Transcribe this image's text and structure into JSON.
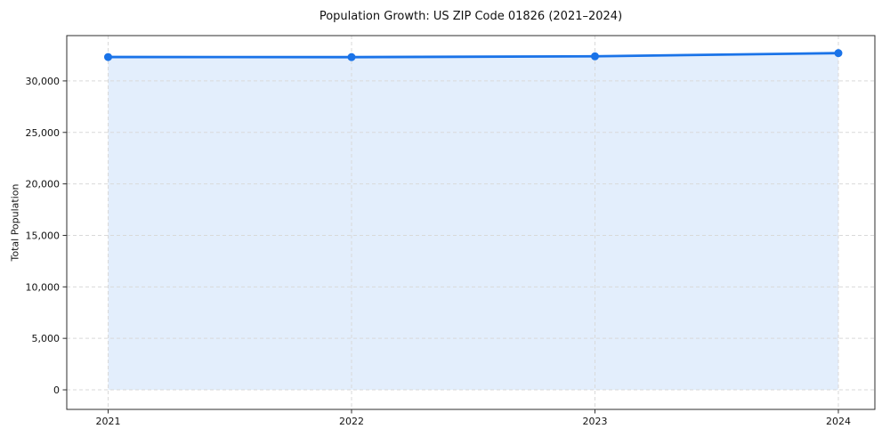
{
  "title": "Population Growth: US ZIP Code 01826 (2021–2024)",
  "chart_data": {
    "type": "line",
    "title": "Population Growth: US ZIP Code 01826 (2021–2024)",
    "xlabel": "",
    "ylabel": "Total Population",
    "x": [
      2021,
      2022,
      2023,
      2024
    ],
    "x_tick_labels": [
      "2021",
      "2022",
      "2023",
      "2024"
    ],
    "series": [
      {
        "name": "Total Population",
        "values": [
          32320,
          32310,
          32390,
          32700
        ]
      }
    ],
    "y_ticks": [
      0,
      5000,
      10000,
      15000,
      20000,
      25000,
      30000
    ],
    "y_tick_labels": [
      "0",
      "5,000",
      "10,000",
      "15,000",
      "20,000",
      "25,000",
      "30,000"
    ],
    "ylim": [
      -1900,
      34400
    ],
    "xlim": [
      2020.83,
      2024.15
    ],
    "grid": true,
    "grid_style": "dashed",
    "legend_position": "none",
    "line_color": "#1a73e8",
    "marker": "circle",
    "marker_color": "#1a73e8",
    "area_fill": true,
    "fill_color": "rgba(26,115,232,0.12)",
    "fill_baseline": 0
  }
}
